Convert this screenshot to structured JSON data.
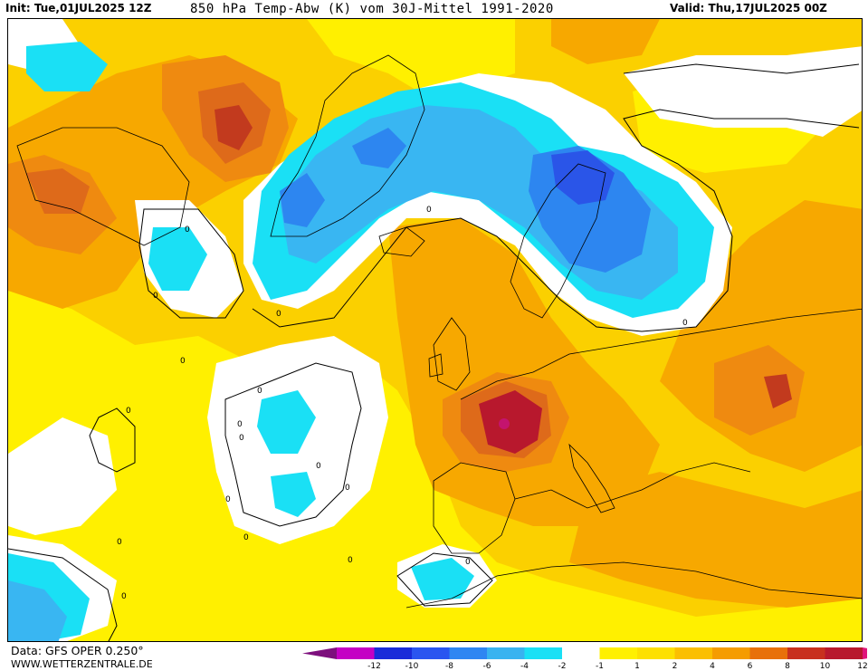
{
  "header": {
    "init": "Init: Tue,01JUL2025 12Z",
    "title": "850 hPa Temp-Abw (K) vom 30J-Mittel 1991-2020",
    "valid": "Valid: Thu,17JUL2025 00Z"
  },
  "map": {
    "contour_labels": [
      "0",
      "0",
      "0",
      "0",
      "0",
      "0",
      "0",
      "0",
      "0",
      "0",
      "0",
      "0",
      "0",
      "0",
      "0",
      "0",
      "0",
      "0"
    ]
  },
  "footer": {
    "data_source": "Data: GFS OPER 0.250°",
    "website": "WWW.WETTERZENTRALE.DE"
  },
  "legend": {
    "ticks": [
      "-12",
      "-10",
      "-8",
      "-6",
      "-4",
      "-2",
      "-1",
      "1",
      "2",
      "4",
      "6",
      "8",
      "10",
      "12"
    ],
    "colors": [
      "#7d0f7d",
      "#c400c4",
      "#1a2bd9",
      "#2a55f0",
      "#2f86f2",
      "#38b3f0",
      "#1ae0f5",
      "#ffffff",
      "#fff000",
      "#fde000",
      "#fbbf00",
      "#f59c00",
      "#e8700a",
      "#c8301e",
      "#b8182d",
      "#e0147a"
    ]
  },
  "colors": {
    "plus1_2": "#fff000",
    "plus2_4": "#fbd000",
    "plus4_6": "#f7a800",
    "plus6_8": "#ef8a10",
    "plus8_10": "#de6a1a",
    "plus10_12": "#b8182d",
    "plus12": "#c4146e",
    "minus1_2": "#1ae0f5",
    "minus2_4": "#39b6f2",
    "minus4_6": "#2d86f0",
    "minus6_8": "#2a55e8",
    "neutral": "#ffffff"
  }
}
